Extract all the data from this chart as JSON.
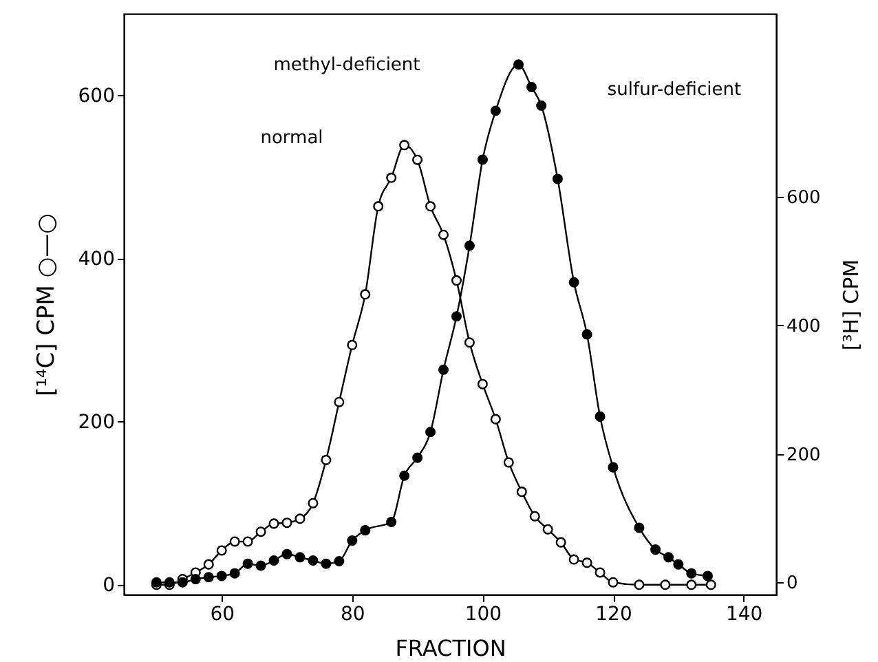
{
  "chart_data": {
    "type": "line",
    "xlabel": "FRACTION",
    "ylabel": "[¹⁴C] CPM ○—○",
    "y2label": "[³H] CPM",
    "xlim": [
      45,
      145
    ],
    "xticks": [
      60,
      80,
      100,
      120,
      140
    ],
    "ylim": [
      -12,
      700
    ],
    "yticks": [
      0,
      200,
      400,
      600
    ],
    "y2lim": [
      -19,
      885
    ],
    "y2ticks": [
      0,
      200,
      400,
      600
    ],
    "marker": "circle",
    "grid": false,
    "series": [
      {
        "color": "#000000",
        "x": [
          50,
          52,
          54,
          56,
          58,
          60,
          62,
          64,
          66,
          68,
          70,
          72,
          74,
          76,
          78,
          80,
          82,
          84,
          86,
          88,
          90,
          92,
          94,
          96,
          98,
          100,
          102,
          104,
          106,
          108,
          110,
          112,
          114,
          116,
          118,
          120,
          124,
          128,
          132,
          135
        ],
        "values": [
          0,
          0,
          7,
          15,
          25,
          42,
          53,
          53,
          65,
          75,
          76,
          81,
          100,
          153,
          224,
          294,
          356,
          464,
          499,
          539,
          521,
          464,
          429,
          373,
          297,
          246,
          203,
          150,
          114,
          84,
          68,
          52,
          31,
          27,
          15,
          3,
          0,
          0,
          0,
          0
        ]
      },
      {
        "color": "#000000",
        "axis": "y2",
        "x": [
          50,
          52,
          54,
          56,
          58,
          60,
          62,
          64,
          66,
          68,
          70,
          72,
          74,
          76,
          78,
          80,
          82,
          86,
          88,
          90,
          92,
          94,
          96,
          98,
          100,
          102,
          105.5,
          107.5,
          109,
          111.5,
          114,
          116,
          118,
          120,
          124,
          126.5,
          128.5,
          130,
          132,
          134.5
        ],
        "values": [
          0,
          0,
          0,
          5,
          8,
          10,
          14,
          29,
          26,
          34,
          44,
          39,
          34,
          29,
          33,
          65,
          81,
          94,
          166,
          194,
          234,
          331,
          414,
          524,
          658,
          734,
          806,
          771,
          742,
          628,
          467,
          386,
          258,
          179,
          85,
          51,
          39,
          28,
          14,
          10
        ]
      }
    ],
    "annotations": [
      "normal",
      "methyl-deficient",
      "sulfur-deficient"
    ]
  }
}
